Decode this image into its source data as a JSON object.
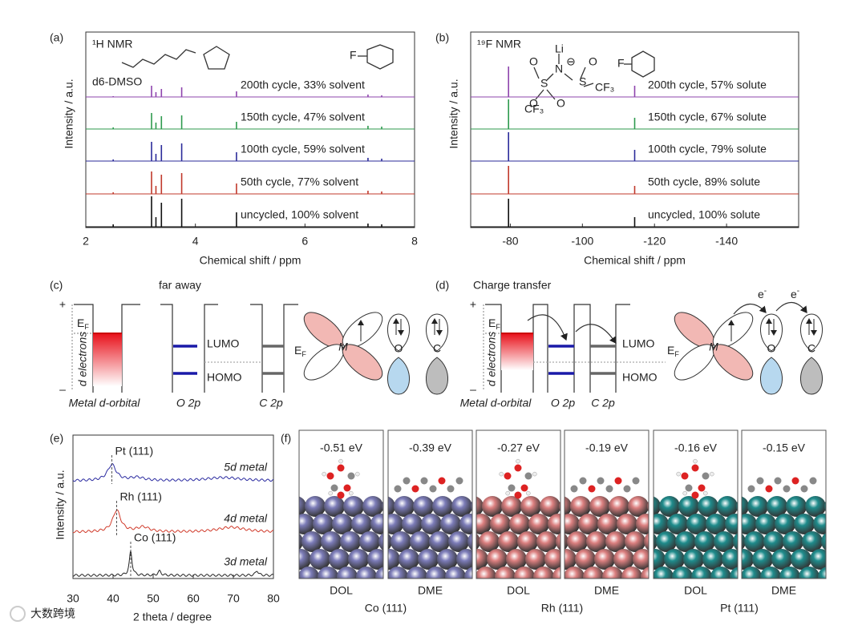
{
  "panels": {
    "a": {
      "label": "(a)",
      "title": "¹H NMR",
      "title_color": "#c0392b",
      "solvent_label": "d6-DMSO",
      "fluoro_label": "F",
      "xlabel": "Chemical shift / ppm",
      "ylabel": "Intensity / a.u.",
      "xlim": [
        2,
        8
      ],
      "xticks": [
        2,
        4,
        6,
        8
      ],
      "peaks": [
        2.5,
        3.2,
        3.28,
        3.38,
        3.75,
        4.75,
        7.15,
        7.4
      ],
      "traces": [
        {
          "name": "200th cycle, 33% solvent",
          "color": "#8e44ad",
          "heights": [
            1,
            14,
            6,
            10,
            12,
            7,
            3,
            2
          ]
        },
        {
          "name": "150th cycle, 47% solvent",
          "color": "#2e9a4e",
          "heights": [
            2,
            20,
            8,
            16,
            17,
            9,
            4,
            3
          ]
        },
        {
          "name": "100th cycle, 59% solvent",
          "color": "#2b2b9a",
          "heights": [
            2,
            24,
            9,
            20,
            22,
            11,
            4,
            3
          ]
        },
        {
          "name": "50th cycle, 77% solvent",
          "color": "#c0392b",
          "heights": [
            2,
            28,
            10,
            24,
            26,
            13,
            4,
            3
          ]
        },
        {
          "name": "uncycled, 100% solvent",
          "color": "#111111",
          "heights": [
            3,
            38,
            12,
            30,
            35,
            18,
            4,
            3
          ]
        }
      ]
    },
    "b": {
      "label": "(b)",
      "title": "¹⁹F NMR",
      "title_color": "#c0392b",
      "molecule_labels": [
        "Li",
        "N",
        "⊖",
        "S",
        "S",
        "O",
        "O",
        "O",
        "O",
        "CF₃",
        "CF₃"
      ],
      "fluoro_label": "F",
      "xlabel": "Chemical shift / ppm",
      "ylabel": "Intensity / a.u.",
      "xlim": [
        -69,
        -160
      ],
      "xticks": [
        -80,
        -100,
        -120,
        -140
      ],
      "peaks": [
        -79.5,
        -114.5
      ],
      "traces": [
        {
          "name": "200th cycle, 57% solute",
          "color": "#8e44ad",
          "heights": [
            38,
            14
          ]
        },
        {
          "name": "150th cycle, 67% solute",
          "color": "#2e9a4e",
          "heights": [
            37,
            14
          ]
        },
        {
          "name": "100th cycle, 79% solute",
          "color": "#2b2b9a",
          "heights": [
            36,
            14
          ]
        },
        {
          "name": "50th cycle, 89% solute",
          "color": "#c0392b",
          "heights": [
            35,
            10
          ]
        },
        {
          "name": "uncycled, 100% solute",
          "color": "#111111",
          "heights": [
            35,
            12
          ]
        }
      ]
    },
    "c": {
      "label": "(c)",
      "heading": "far away",
      "plus": "+",
      "minus": "–",
      "ef": {
        "main": "E",
        "sub": "F"
      },
      "d_electrons": "d electrons",
      "metal": "Metal d-orbital",
      "o2p": "O 2p",
      "c2p": "C 2p",
      "lumo": "LUMO",
      "homo": "HOMO",
      "m": "M",
      "o": "O",
      "c": "C"
    },
    "d": {
      "label": "(d)",
      "heading": "Charge transfer",
      "plus": "+",
      "minus": "–",
      "ef": {
        "main": "E",
        "sub": "F"
      },
      "d_electrons": "d electrons",
      "metal": "Metal d-orbital",
      "o2p": "O 2p",
      "c2p": "C 2p",
      "lumo": "LUMO",
      "homo": "HOMO",
      "m": "M",
      "o": "O",
      "c": "C",
      "electron": {
        "main": "e",
        "sup": "-"
      }
    },
    "e": {
      "label": "(e)",
      "xlabel": "2 theta / degree",
      "ylabel": "Intensity / a.u.",
      "xlim": [
        30,
        80
      ],
      "xticks": [
        30,
        40,
        50,
        60,
        70,
        80
      ],
      "name_color": "#2e8b3e",
      "traces": [
        {
          "name": "5d metal",
          "peak_label": "Pt (111)",
          "color": "#2b2ba0",
          "positions": [
            39.7,
            46,
            67.5
          ],
          "heights": [
            20,
            4,
            4
          ],
          "widths": [
            1.3,
            2,
            5
          ]
        },
        {
          "name": "4d metal",
          "peak_label": "Rh (111)",
          "color": "#d03a2a",
          "positions": [
            40.9,
            47.5,
            69.5
          ],
          "heights": [
            27,
            6,
            6
          ],
          "widths": [
            1.2,
            1.8,
            4
          ]
        },
        {
          "name": "3d metal",
          "peak_label": "Co (111)",
          "color": "#222222",
          "positions": [
            44.4,
            51.6,
            75.9
          ],
          "heights": [
            30,
            5,
            6
          ],
          "widths": [
            0.4,
            0.5,
            0.4
          ]
        }
      ]
    },
    "f": {
      "label": "(f)",
      "energies": [
        "-0.51 eV",
        "-0.39 eV",
        "-0.27 eV",
        "-0.19 eV",
        "-0.16 eV",
        "-0.15 eV"
      ],
      "adsorbates": [
        "DOL",
        "DME",
        "DOL",
        "DME",
        "DOL",
        "DME"
      ],
      "surfaces": [
        "Co (111)",
        "Rh (111)",
        "Pt (111)"
      ],
      "colors": [
        "#7c7cb8",
        "#dc8080",
        "#1f8c8c"
      ]
    }
  },
  "watermark": "大数跨境"
}
